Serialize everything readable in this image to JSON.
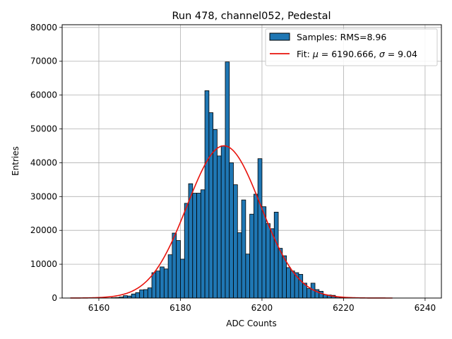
{
  "chart_data": {
    "type": "bar",
    "title": "Run 478, channel052, Pedestal",
    "xlabel": "ADC Counts",
    "ylabel": "Entries",
    "xlim": [
      6151,
      6244
    ],
    "ylim": [
      0,
      80800
    ],
    "xticks": [
      6160,
      6180,
      6200,
      6220,
      6240
    ],
    "yticks": [
      0,
      10000,
      20000,
      30000,
      40000,
      50000,
      60000,
      70000,
      80000
    ],
    "grid": true,
    "legend": {
      "placement": "top-right",
      "entries": [
        {
          "label": "Samples: RMS=8.96",
          "kind": "patch"
        },
        {
          "label_prefix": "Fit: ",
          "mu_symbol": "μ",
          "mu_text": " = 6190.666, ",
          "sigma_symbol": "σ",
          "sigma_text": " = 9.04",
          "kind": "line"
        }
      ]
    },
    "histogram": {
      "name": "Samples: RMS=8.96",
      "bin_width": 1,
      "bin_starts": [
        6163,
        6164,
        6165,
        6166,
        6167,
        6168,
        6169,
        6170,
        6171,
        6172,
        6173,
        6174,
        6175,
        6176,
        6177,
        6178,
        6179,
        6180,
        6181,
        6182,
        6183,
        6184,
        6185,
        6186,
        6187,
        6188,
        6189,
        6190,
        6191,
        6192,
        6193,
        6194,
        6195,
        6196,
        6197,
        6198,
        6199,
        6200,
        6201,
        6202,
        6203,
        6204,
        6205,
        6206,
        6207,
        6208,
        6209,
        6210,
        6211,
        6212,
        6213,
        6214,
        6215,
        6216,
        6217,
        6218,
        6219,
        6220
      ],
      "values": [
        100,
        150,
        300,
        700,
        600,
        1200,
        1600,
        2400,
        2500,
        3000,
        7500,
        8000,
        9200,
        8600,
        12800,
        19200,
        17000,
        11500,
        28000,
        33800,
        31000,
        31000,
        32000,
        61300,
        54800,
        49800,
        42000,
        45000,
        69800,
        40000,
        33500,
        19300,
        29000,
        13000,
        24800,
        30700,
        41200,
        27000,
        22000,
        20500,
        25400,
        14700,
        12500,
        9000,
        8000,
        7500,
        7000,
        4400,
        2800,
        4400,
        2500,
        2000,
        1000,
        900,
        800,
        300,
        200,
        100
      ],
      "fill": "#1f77b4",
      "edge": "#000000"
    },
    "fit": {
      "type": "gaussian",
      "mu": 6190.666,
      "sigma": 9.04,
      "amplitude": 45000,
      "x_range": [
        6153,
        6232
      ],
      "color": "#e8120c"
    }
  }
}
